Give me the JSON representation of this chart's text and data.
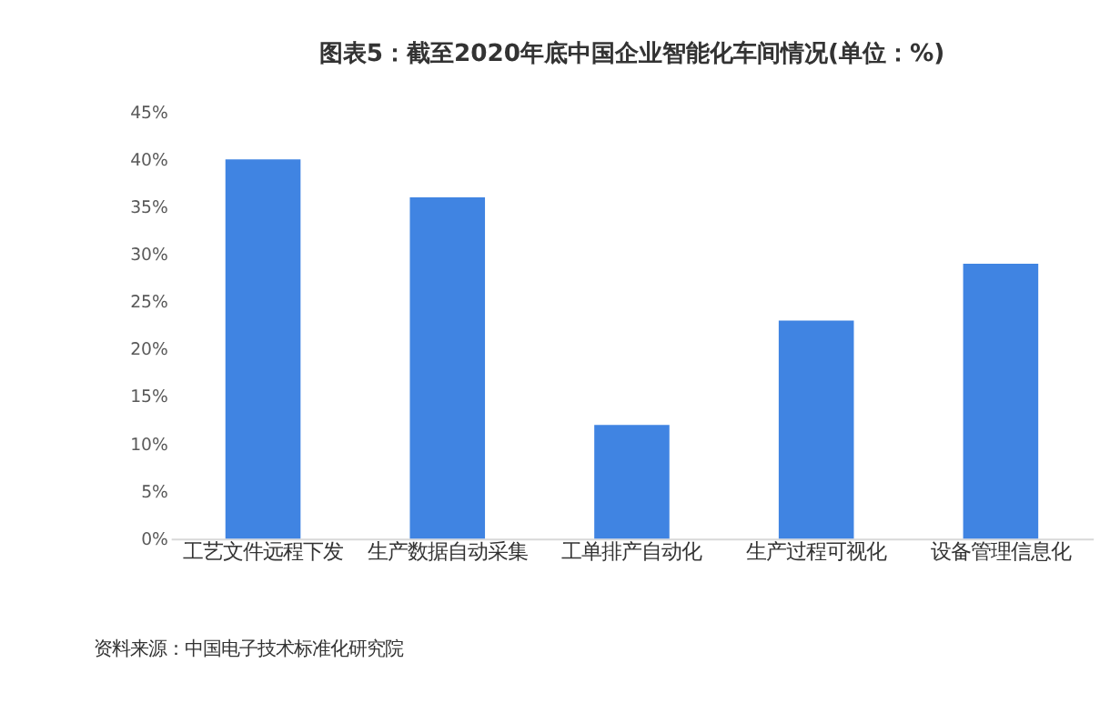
{
  "chart_data": {
    "type": "bar",
    "title": "图表5：截至2020年底中国企业智能化车间情况(单位：%)",
    "categories": [
      "工艺文件远程下发",
      "生产数据自动采集",
      "工单排产自动化",
      "生产过程可视化",
      "设备管理信息化"
    ],
    "values": [
      40,
      36,
      12,
      23,
      29
    ],
    "color": "#4084e2",
    "ylim": [
      0,
      45
    ],
    "yticks": [
      {
        "value": 0,
        "label": "0%"
      },
      {
        "value": 5,
        "label": "5%"
      },
      {
        "value": 10,
        "label": "10%"
      },
      {
        "value": 15,
        "label": "15%"
      },
      {
        "value": 20,
        "label": "20%"
      },
      {
        "value": 25,
        "label": "25%"
      },
      {
        "value": 30,
        "label": "30%"
      },
      {
        "value": 35,
        "label": "35%"
      },
      {
        "value": 40,
        "label": "40%"
      },
      {
        "value": 45,
        "label": "45%"
      }
    ],
    "grid": false,
    "annotations": [
      "资料来源：中国电子技术标准化研究院"
    ]
  }
}
